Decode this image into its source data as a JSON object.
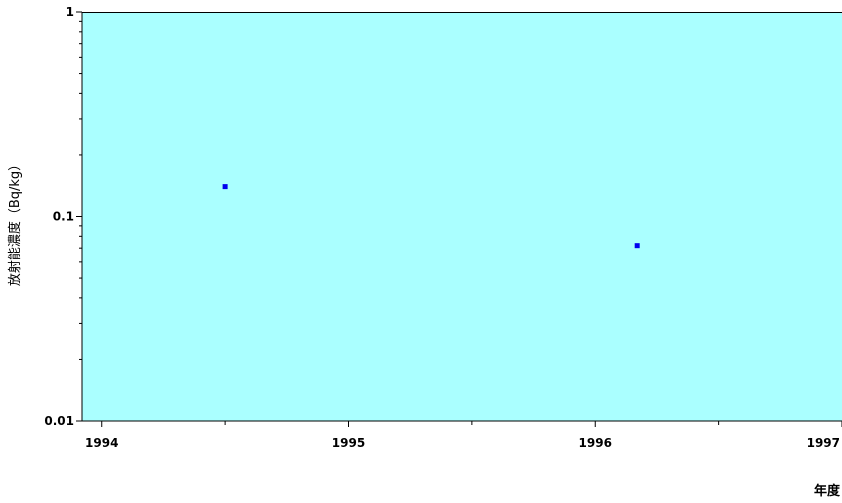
{
  "chart_data": {
    "type": "scatter",
    "ylabel": "放射能濃度（Bq/kg）",
    "xlabel": "年度",
    "y_scale": "log",
    "ylim": [
      0.01,
      1
    ],
    "xlim": [
      1993.92,
      1997.0
    ],
    "y_ticks": [
      {
        "value": 1,
        "label": "1"
      },
      {
        "value": 0.1,
        "label": "0.1"
      },
      {
        "value": 0.01,
        "label": "0.01"
      }
    ],
    "x_ticks": [
      {
        "value": 1994,
        "label": "1994"
      },
      {
        "value": 1995,
        "label": "1995"
      },
      {
        "value": 1996,
        "label": "1996"
      },
      {
        "value": 1997,
        "label": "1997"
      }
    ],
    "points": [
      {
        "x": 1994.5,
        "y": 0.14
      },
      {
        "x": 1996.17,
        "y": 0.072
      }
    ],
    "grid": false,
    "colors": {
      "plot_background": "#aaffff",
      "marker": "#0000ee",
      "axis": "#000000"
    }
  }
}
